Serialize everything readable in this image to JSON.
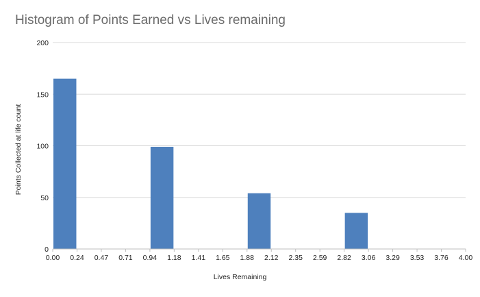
{
  "chart_data": {
    "type": "bar",
    "title": "Histogram of Points Earned vs Lives remaining",
    "xlabel": "Lives Remaining",
    "ylabel": "Points Collected at life count",
    "x_ticks": [
      "0.00",
      "0.24",
      "0.47",
      "0.71",
      "0.94",
      "1.18",
      "1.41",
      "1.65",
      "1.88",
      "2.12",
      "2.35",
      "2.59",
      "2.82",
      "3.06",
      "3.29",
      "3.53",
      "3.76",
      "4.00"
    ],
    "y_ticks": [
      0,
      50,
      100,
      150,
      200
    ],
    "ylim": [
      0,
      200
    ],
    "bins": [
      {
        "range": "0.00-0.24",
        "value": 165
      },
      {
        "range": "0.24-0.47",
        "value": 0
      },
      {
        "range": "0.47-0.71",
        "value": 0
      },
      {
        "range": "0.71-0.94",
        "value": 0
      },
      {
        "range": "0.94-1.18",
        "value": 99
      },
      {
        "range": "1.18-1.41",
        "value": 0
      },
      {
        "range": "1.41-1.65",
        "value": 0
      },
      {
        "range": "1.65-1.88",
        "value": 0
      },
      {
        "range": "1.88-2.12",
        "value": 54
      },
      {
        "range": "2.12-2.35",
        "value": 0
      },
      {
        "range": "2.35-2.59",
        "value": 0
      },
      {
        "range": "2.59-2.82",
        "value": 0
      },
      {
        "range": "2.82-3.06",
        "value": 35
      },
      {
        "range": "3.06-3.29",
        "value": 0
      },
      {
        "range": "3.29-3.53",
        "value": 0
      },
      {
        "range": "3.53-3.76",
        "value": 0
      },
      {
        "range": "3.76-4.00",
        "value": 0
      }
    ],
    "bar_color": "#4e80bd",
    "gridlines": true,
    "legend": "none"
  }
}
